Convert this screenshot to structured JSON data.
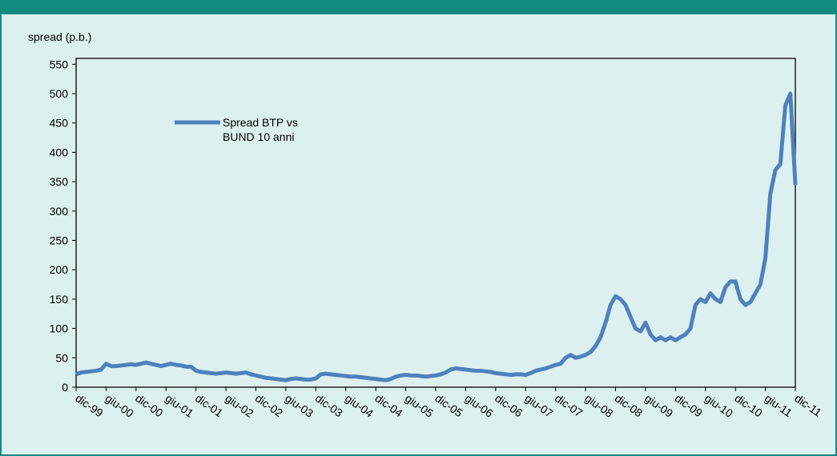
{
  "chart_data": {
    "type": "line",
    "y_label": "spread (p.b.)",
    "categories": [
      "dic-99",
      null,
      null,
      null,
      null,
      null,
      "giu-00",
      null,
      null,
      null,
      null,
      null,
      "dic-00",
      null,
      null,
      null,
      null,
      null,
      "giu-01",
      null,
      null,
      null,
      null,
      null,
      "dic-01",
      null,
      null,
      null,
      null,
      null,
      "giu-02",
      null,
      null,
      null,
      null,
      null,
      "dic-02",
      null,
      null,
      null,
      null,
      null,
      "giu-03",
      null,
      null,
      null,
      null,
      null,
      "dic-03",
      null,
      null,
      null,
      null,
      null,
      "giu-04",
      null,
      null,
      null,
      null,
      null,
      "dic-04",
      null,
      null,
      null,
      null,
      null,
      "giu-05",
      null,
      null,
      null,
      null,
      null,
      "dic-05",
      null,
      null,
      null,
      null,
      null,
      "giu-06",
      null,
      null,
      null,
      null,
      null,
      "dic-06",
      null,
      null,
      null,
      null,
      null,
      "giu-07",
      null,
      null,
      null,
      null,
      null,
      "dic-07",
      null,
      null,
      null,
      null,
      null,
      "giu-08",
      null,
      null,
      null,
      null,
      null,
      "dic-08",
      null,
      null,
      null,
      null,
      null,
      "giu-09",
      null,
      null,
      null,
      null,
      null,
      "dic-09",
      null,
      null,
      null,
      null,
      null,
      "giu-10",
      null,
      null,
      null,
      null,
      null,
      "dic-10",
      null,
      null,
      null,
      null,
      null,
      "giu-11",
      null,
      null,
      null,
      null,
      null,
      "dic-11"
    ],
    "series": [
      {
        "name": "Spread BTP vs BUND 10 anni",
        "color": "#4f81bd",
        "values": [
          22,
          25,
          26,
          27,
          28,
          30,
          40,
          36,
          36,
          37,
          38,
          39,
          38,
          40,
          42,
          40,
          38,
          36,
          38,
          40,
          38,
          37,
          35,
          35,
          28,
          26,
          25,
          24,
          23,
          24,
          25,
          24,
          23,
          24,
          25,
          22,
          20,
          18,
          16,
          15,
          14,
          13,
          12,
          14,
          15,
          14,
          13,
          13,
          15,
          22,
          23,
          22,
          21,
          20,
          19,
          18,
          18,
          17,
          16,
          15,
          14,
          13,
          12,
          14,
          18,
          20,
          21,
          20,
          20,
          19,
          18,
          19,
          20,
          22,
          25,
          30,
          32,
          31,
          30,
          29,
          28,
          28,
          27,
          26,
          24,
          23,
          22,
          21,
          22,
          22,
          21,
          24,
          28,
          30,
          32,
          35,
          38,
          40,
          50,
          55,
          50,
          52,
          55,
          60,
          70,
          85,
          110,
          140,
          155,
          150,
          140,
          120,
          100,
          95,
          110,
          90,
          80,
          85,
          80,
          85,
          80,
          85,
          90,
          100,
          140,
          150,
          145,
          160,
          150,
          145,
          170,
          180,
          180,
          150,
          140,
          145,
          160,
          175,
          220,
          330,
          370,
          380,
          480,
          500,
          345
        ]
      }
    ],
    "ylim": [
      0,
      560
    ],
    "yticks": [
      0,
      50,
      100,
      150,
      200,
      250,
      300,
      350,
      400,
      450,
      500,
      550
    ]
  }
}
